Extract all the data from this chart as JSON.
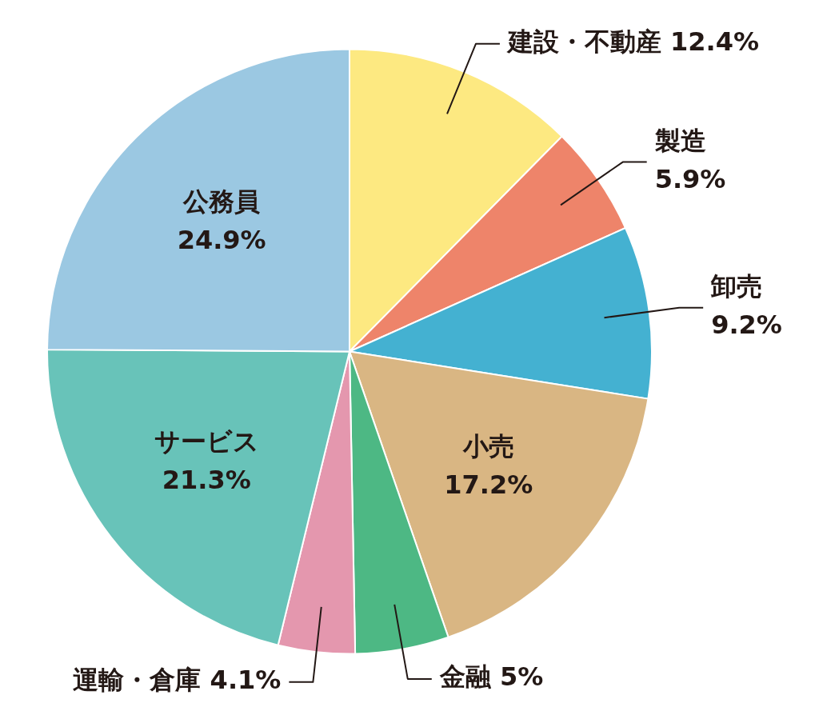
{
  "chart_data": {
    "type": "pie",
    "categories": [
      "建設・不動産",
      "製造",
      "卸売",
      "小売",
      "金融",
      "運輸・倉庫",
      "サービス",
      "公務員"
    ],
    "values": [
      12.4,
      5.9,
      9.2,
      17.2,
      5,
      4.1,
      21.3,
      24.9
    ],
    "colors": [
      "#fde981",
      "#ee846a",
      "#44b1d1",
      "#d9b683",
      "#4db884",
      "#e497ae",
      "#68c3b9",
      "#9bc8e2"
    ],
    "value_labels": [
      "12.4%",
      "5.9%",
      "9.2%",
      "17.2%",
      "5%",
      "4.1%",
      "21.3%",
      "24.9%"
    ]
  }
}
